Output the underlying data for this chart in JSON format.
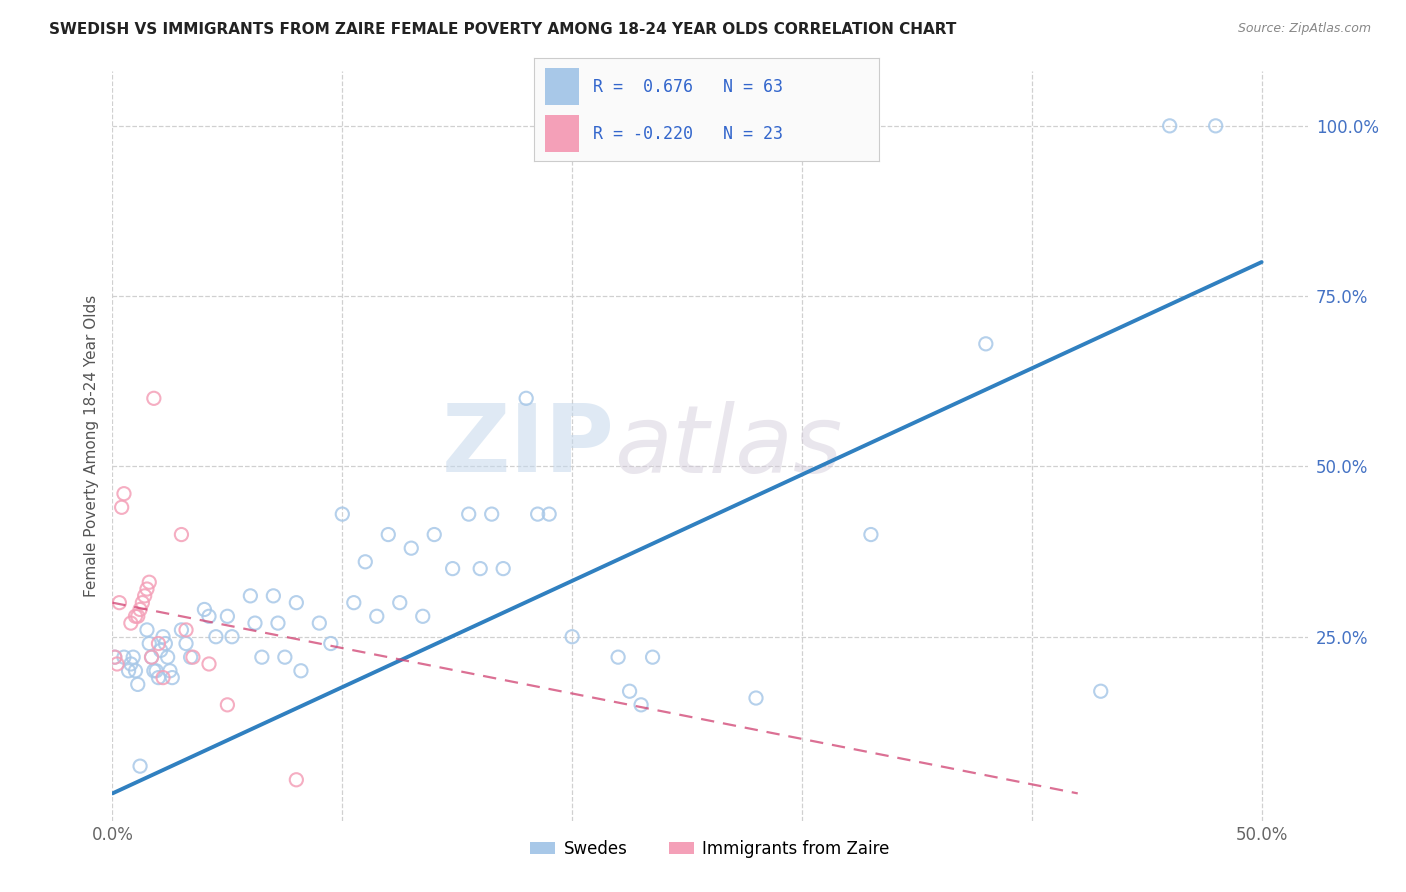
{
  "title": "SWEDISH VS IMMIGRANTS FROM ZAIRE FEMALE POVERTY AMONG 18-24 YEAR OLDS CORRELATION CHART",
  "source": "Source: ZipAtlas.com",
  "ylabel": "Female Poverty Among 18-24 Year Olds",
  "xlim": [
    0.0,
    0.52
  ],
  "ylim": [
    -0.02,
    1.08
  ],
  "watermark_line1": "ZIP",
  "watermark_line2": "atlas",
  "blue_scatter_color": "#a8c8e8",
  "pink_scatter_color": "#f4a0b8",
  "blue_line_color": "#3080c0",
  "pink_line_color": "#d04070",
  "grid_color": "#d0d0d0",
  "background_color": "#ffffff",
  "swedes_x": [
    0.001,
    0.005,
    0.007,
    0.008,
    0.009,
    0.01,
    0.011,
    0.012,
    0.015,
    0.016,
    0.017,
    0.018,
    0.019,
    0.02,
    0.021,
    0.022,
    0.023,
    0.024,
    0.025,
    0.026,
    0.03,
    0.032,
    0.034,
    0.04,
    0.042,
    0.045,
    0.05,
    0.052,
    0.06,
    0.062,
    0.065,
    0.07,
    0.072,
    0.075,
    0.08,
    0.082,
    0.09,
    0.095,
    0.1,
    0.105,
    0.11,
    0.115,
    0.12,
    0.125,
    0.13,
    0.135,
    0.14,
    0.148,
    0.155,
    0.16,
    0.165,
    0.17,
    0.18,
    0.185,
    0.19,
    0.2,
    0.22,
    0.225,
    0.23,
    0.235,
    0.28,
    0.33,
    0.38,
    0.43,
    0.46,
    0.48
  ],
  "swedes_y": [
    0.22,
    0.22,
    0.2,
    0.21,
    0.22,
    0.2,
    0.18,
    0.06,
    0.26,
    0.24,
    0.22,
    0.2,
    0.2,
    0.19,
    0.23,
    0.25,
    0.24,
    0.22,
    0.2,
    0.19,
    0.26,
    0.24,
    0.22,
    0.29,
    0.28,
    0.25,
    0.28,
    0.25,
    0.31,
    0.27,
    0.22,
    0.31,
    0.27,
    0.22,
    0.3,
    0.2,
    0.27,
    0.24,
    0.43,
    0.3,
    0.36,
    0.28,
    0.4,
    0.3,
    0.38,
    0.28,
    0.4,
    0.35,
    0.43,
    0.35,
    0.43,
    0.35,
    0.6,
    0.43,
    0.43,
    0.25,
    0.22,
    0.17,
    0.15,
    0.22,
    0.16,
    0.4,
    0.68,
    0.17,
    1.0,
    1.0
  ],
  "zaire_x": [
    0.001,
    0.002,
    0.003,
    0.004,
    0.005,
    0.008,
    0.01,
    0.011,
    0.012,
    0.013,
    0.014,
    0.015,
    0.016,
    0.017,
    0.018,
    0.02,
    0.022,
    0.03,
    0.032,
    0.035,
    0.042,
    0.05,
    0.08
  ],
  "zaire_y": [
    0.22,
    0.21,
    0.3,
    0.44,
    0.46,
    0.27,
    0.28,
    0.28,
    0.29,
    0.3,
    0.31,
    0.32,
    0.33,
    0.22,
    0.6,
    0.24,
    0.19,
    0.4,
    0.26,
    0.22,
    0.21,
    0.15,
    0.04
  ],
  "blue_line_x": [
    0.0,
    0.5
  ],
  "blue_line_y": [
    0.02,
    0.8
  ],
  "pink_line_x": [
    0.0,
    0.42
  ],
  "pink_line_y": [
    0.3,
    0.02
  ]
}
